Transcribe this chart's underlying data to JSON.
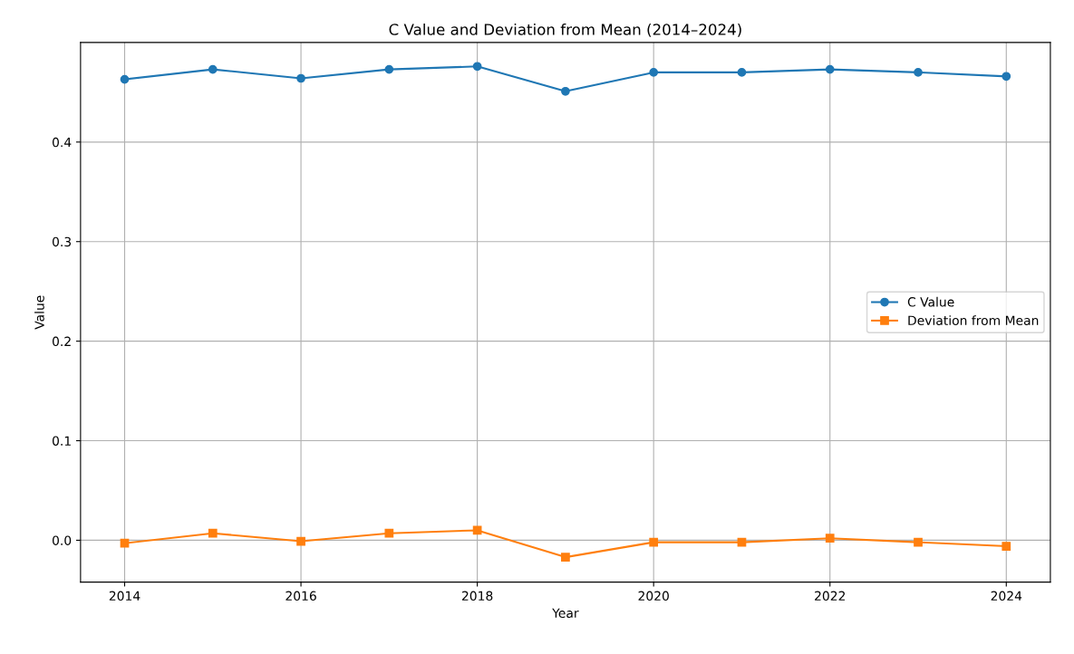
{
  "chart_data": {
    "type": "line",
    "title": "C Value and Deviation from Mean (2014–2024)",
    "xlabel": "Year",
    "ylabel": "Value",
    "x": [
      2014,
      2015,
      2016,
      2017,
      2018,
      2019,
      2020,
      2021,
      2022,
      2023,
      2024
    ],
    "series": [
      {
        "name": "C Value",
        "color": "#1f77b4",
        "marker": "circle",
        "values": [
          0.463,
          0.473,
          0.464,
          0.473,
          0.476,
          0.451,
          0.47,
          0.47,
          0.473,
          0.47,
          0.466
        ]
      },
      {
        "name": "Deviation from Mean",
        "color": "#ff7f0e",
        "marker": "square",
        "values": [
          -0.003,
          0.007,
          -0.001,
          0.007,
          0.01,
          -0.017,
          -0.002,
          -0.002,
          0.002,
          -0.002,
          -0.006
        ]
      }
    ],
    "xlim": [
      2013.5,
      2024.5
    ],
    "xticks": [
      2014,
      2016,
      2018,
      2020,
      2022,
      2024
    ],
    "ylim": [
      -0.042,
      0.5
    ],
    "yticks": [
      {
        "value": 0,
        "label": "0.0"
      },
      0.1,
      0.2,
      0.3,
      0.4
    ],
    "grid": true,
    "legend": "center right"
  }
}
